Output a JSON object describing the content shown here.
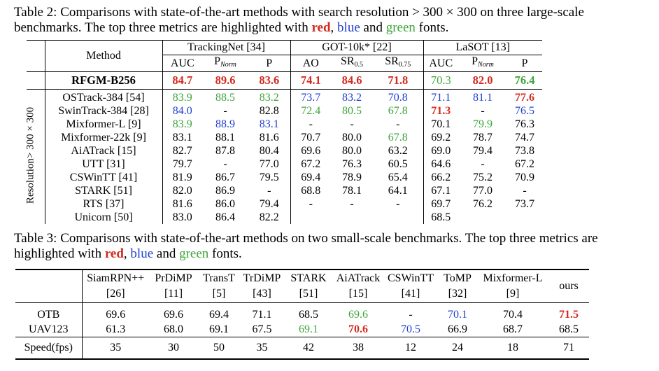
{
  "table2": {
    "caption_parts": [
      "Table 2: Comparisons with state-of-the-art methods with search resolution > 300 × 300 on three large-scale benchmarks. The top three metrics are highlighted with ",
      "red",
      ", ",
      "blue",
      " and ",
      "green",
      " fonts."
    ],
    "method_header": "Method",
    "benchmarks": [
      "TrackingNet [34]",
      "GOT-10k* [22]",
      "LaSOT [13]"
    ],
    "metric_headers": [
      "AUC",
      "P",
      "Norm",
      "P",
      "AO",
      "SR",
      "0.5",
      "SR",
      "0.75",
      "AUC",
      "P",
      "Norm",
      "P"
    ],
    "side_label": "Resolution> 300 × 300",
    "rfgm": {
      "method": "RFGM-B256",
      "values": [
        "84.7",
        "89.6",
        "83.6",
        "74.1",
        "84.6",
        "71.8",
        "70.3",
        "82.0",
        "76.4"
      ]
    },
    "rows": [
      {
        "method": "OSTrack-384 [54]",
        "values": [
          "83.9",
          "88.5",
          "83.2",
          "73.7",
          "83.2",
          "70.8",
          "71.1",
          "81.1",
          "77.6"
        ]
      },
      {
        "method": "SwinTrack-384 [28]",
        "values": [
          "84.0",
          "-",
          "82.8",
          "72.4",
          "80.5",
          "67.8",
          "71.3",
          "-",
          "76.5"
        ]
      },
      {
        "method": "Mixformer-L [9]",
        "values": [
          "83.9",
          "88.9",
          "83.1",
          "-",
          "-",
          "-",
          "70.1",
          "79.9",
          "76.3"
        ]
      },
      {
        "method": "Mixformer-22k [9]",
        "values": [
          "83.1",
          "88.1",
          "81.6",
          "70.7",
          "80.0",
          "67.8",
          "69.2",
          "78.7",
          "74.7"
        ]
      },
      {
        "method": "AiATrack [15]",
        "values": [
          "82.7",
          "87.8",
          "80.4",
          "69.6",
          "80.0",
          "63.2",
          "69.0",
          "79.4",
          "73.8"
        ]
      },
      {
        "method": "UTT [31]",
        "values": [
          "79.7",
          "-",
          "77.0",
          "67.2",
          "76.3",
          "60.5",
          "64.6",
          "-",
          "67.2"
        ]
      },
      {
        "method": "CSWinTT [41]",
        "values": [
          "81.9",
          "86.7",
          "79.5",
          "69.4",
          "78.9",
          "65.4",
          "66.2",
          "75.2",
          "70.9"
        ]
      },
      {
        "method": "STARK [51]",
        "values": [
          "82.0",
          "86.9",
          "-",
          "68.8",
          "78.1",
          "64.1",
          "67.1",
          "77.0",
          "-"
        ]
      },
      {
        "method": "RTS [37]",
        "values": [
          "81.6",
          "86.0",
          "79.4",
          "-",
          "-",
          "-",
          "69.7",
          "76.2",
          "73.7"
        ]
      },
      {
        "method": "Unicorn [50]",
        "values": [
          "83.0",
          "86.4",
          "82.2",
          "",
          "",
          "",
          "68.5",
          "",
          ""
        ]
      }
    ]
  },
  "table3": {
    "caption_parts": [
      "Table 3: Comparisons with state-of-the-art methods on two small-scale benchmarks. The top three metrics are highlighted with ",
      "red",
      ", ",
      "blue",
      " and ",
      "green",
      " fonts."
    ],
    "methods": [
      {
        "name": "SiamRPN++",
        "ref": "[26]"
      },
      {
        "name": "PrDiMP",
        "ref": "[11]"
      },
      {
        "name": "TransT",
        "ref": "[5]"
      },
      {
        "name": "TrDiMP",
        "ref": "[43]"
      },
      {
        "name": "STARK",
        "ref": "[51]"
      },
      {
        "name": "AiATrack",
        "ref": "[15]"
      },
      {
        "name": "CSWinTT",
        "ref": "[41]"
      },
      {
        "name": "ToMP",
        "ref": "[32]"
      },
      {
        "name": "Mixformer-L",
        "ref": "[9]"
      },
      {
        "name": "ours",
        "ref": ""
      }
    ],
    "rows": [
      {
        "label": "OTB",
        "values": [
          "69.6",
          "69.6",
          "69.4",
          "71.1",
          "68.5",
          "69.6",
          "-",
          "70.1",
          "70.4",
          "71.5"
        ]
      },
      {
        "label": "UAV123",
        "values": [
          "61.3",
          "68.0",
          "69.1",
          "67.5",
          "69.1",
          "70.6",
          "70.5",
          "66.9",
          "68.7",
          "68.5"
        ]
      },
      {
        "label": "Speed(fps)",
        "values": [
          "35",
          "30",
          "50",
          "35",
          "42",
          "38",
          "12",
          "24",
          "18",
          "71"
        ]
      }
    ]
  },
  "highlight_colors": {
    "red": "#d42a1f",
    "blue": "#1f3fd1",
    "green": "#3ea53a"
  }
}
